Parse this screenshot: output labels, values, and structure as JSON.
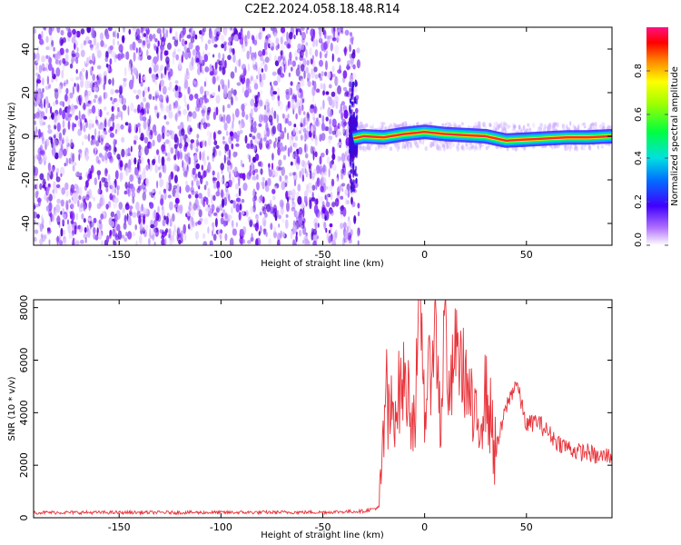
{
  "title": "C2E2.2024.058.18.48.R14",
  "colors": {
    "snr_line": "#e8333a",
    "noise": "#7a00ee",
    "ridge": "#ff2a2a",
    "axis": "#000000"
  },
  "chart_data": [
    {
      "type": "heatmap",
      "xlabel": "Height of straight line (km)",
      "ylabel": "Frequency (Hz)",
      "xlim": [
        -192,
        92
      ],
      "ylim": [
        -50,
        50
      ],
      "xticks": [
        "-150",
        "-100",
        "-50",
        "0",
        "50"
      ],
      "yticks": [
        "-40",
        "-20",
        "0",
        "20",
        "40"
      ],
      "noise_region_x": [
        -192,
        -35
      ],
      "ridge": {
        "x": [
          -35,
          -30,
          -20,
          -10,
          0,
          10,
          20,
          30,
          35,
          40,
          50,
          60,
          70,
          80,
          92
        ],
        "y": [
          -1,
          0,
          -0.5,
          1,
          2,
          1,
          0.5,
          0,
          -1,
          -2,
          -1.5,
          -1,
          -0.5,
          -0.5,
          0
        ]
      },
      "colorbar": {
        "label": "Normalized spectral amplitude",
        "ticks": [
          "0.0",
          "0.2",
          "0.4",
          "0.6",
          "0.8"
        ],
        "range": [
          0,
          1
        ]
      }
    },
    {
      "type": "line",
      "xlabel": "Height of straight line (km)",
      "ylabel": "SNR (10 * v/v)",
      "xlim": [
        -192,
        92
      ],
      "ylim": [
        0,
        8300
      ],
      "xticks": [
        "-150",
        "-100",
        "-50",
        "0",
        "50"
      ],
      "yticks": [
        "0",
        "2000",
        "4000",
        "6000",
        "8000"
      ],
      "series": [
        {
          "x": [
            -192,
            -150,
            -100,
            -50,
            -30,
            -22,
            -21,
            -20,
            -19,
            -18,
            -15,
            -10,
            -5,
            -2,
            0,
            3,
            5,
            8,
            10,
            12,
            15,
            20,
            25,
            30,
            35,
            40,
            45,
            50,
            55,
            60,
            65,
            70,
            75,
            80,
            85,
            92
          ],
          "y": [
            200,
            200,
            200,
            210,
            250,
            400,
            1800,
            3000,
            5600,
            3500,
            4300,
            5200,
            3800,
            8200,
            4200,
            5600,
            7600,
            3500,
            8300,
            4000,
            6500,
            5400,
            3200,
            4800,
            2500,
            4200,
            5200,
            3500,
            3700,
            3300,
            2900,
            2700,
            2500,
            2500,
            2300,
            2400
          ]
        }
      ]
    }
  ]
}
